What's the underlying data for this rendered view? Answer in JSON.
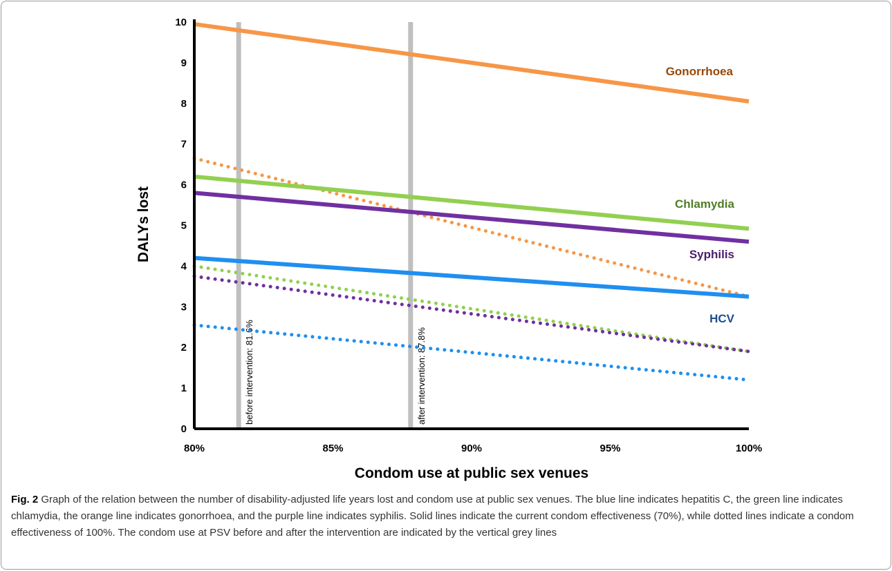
{
  "chart_data": {
    "type": "line",
    "title": "",
    "xlabel": "Condom use at public sex venues",
    "ylabel": "DALYs lost",
    "xlim": [
      80,
      100
    ],
    "ylim": [
      0,
      10
    ],
    "x_ticks": [
      "80%",
      "85%",
      "90%",
      "95%",
      "100%"
    ],
    "y_ticks": [
      "0",
      "1",
      "2",
      "3",
      "4",
      "5",
      "6",
      "7",
      "8",
      "9",
      "10"
    ],
    "grid": false,
    "legend": "none",
    "series": [
      {
        "name": "Gonorrhoea",
        "style": "solid",
        "color": "#f79646",
        "label_color": "#984807",
        "x": [
          80,
          100
        ],
        "y": [
          9.95,
          8.05
        ]
      },
      {
        "name": "Chlamydia",
        "style": "solid",
        "color": "#92d050",
        "label_color": "#4f7d26",
        "x": [
          80,
          100
        ],
        "y": [
          6.2,
          4.92
        ]
      },
      {
        "name": "Syphilis",
        "style": "solid",
        "color": "#7030a0",
        "label_color": "#4b1d6e",
        "x": [
          80,
          100
        ],
        "y": [
          5.8,
          4.6
        ]
      },
      {
        "name": "HCV",
        "style": "solid",
        "color": "#1f8ff0",
        "label_color": "#1f4e8c",
        "x": [
          80,
          100
        ],
        "y": [
          4.2,
          3.25
        ]
      },
      {
        "name": "",
        "style": "dotted",
        "color": "#f79646",
        "x": [
          80,
          100
        ],
        "y": [
          6.65,
          3.25
        ]
      },
      {
        "name": "",
        "style": "dotted",
        "color": "#92d050",
        "x": [
          80,
          100
        ],
        "y": [
          4.0,
          1.9
        ]
      },
      {
        "name": "",
        "style": "dotted",
        "color": "#7030a0",
        "x": [
          80,
          100
        ],
        "y": [
          3.75,
          1.9
        ]
      },
      {
        "name": "",
        "style": "dotted",
        "color": "#1f8ff0",
        "x": [
          80,
          100
        ],
        "y": [
          2.55,
          1.2
        ]
      }
    ],
    "reference_lines": [
      {
        "x": 81.6,
        "label": "before intervention: 81.6%",
        "color": "#bfbfbf"
      },
      {
        "x": 87.8,
        "label": "after intervention: 87.8%",
        "color": "#bfbfbf"
      }
    ]
  },
  "caption": {
    "label": "Fig. 2",
    "text": " Graph of the relation between the number of disability-adjusted life years lost and condom use at public sex venues. The blue line indicates hepatitis C, the green line indicates chlamydia, the orange line indicates gonorrhoea, and the purple line indicates syphilis. Solid lines indicate the current condom effectiveness (70%), while dotted lines indicate a condom effectiveness of 100%. The condom use at PSV before and after the intervention are indicated by the vertical grey lines"
  }
}
